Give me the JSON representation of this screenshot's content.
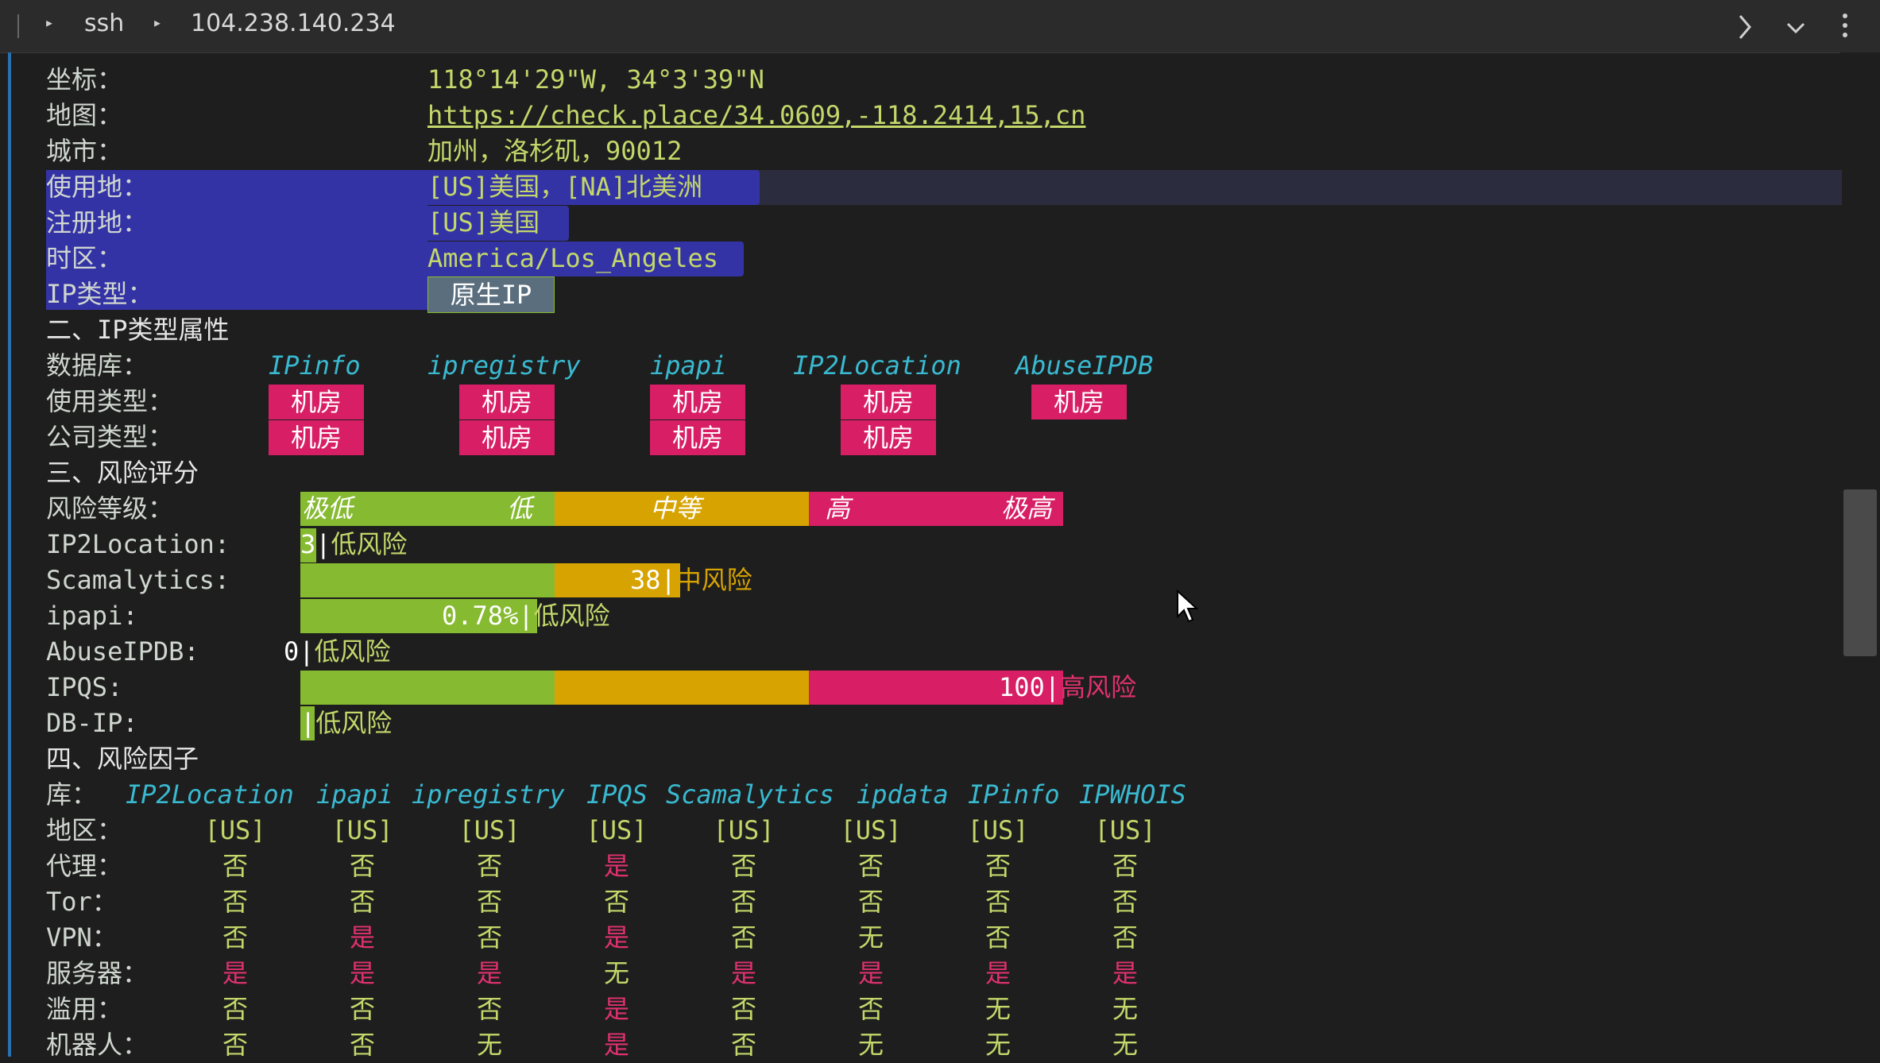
{
  "header": {
    "crumb_program": "ssh",
    "crumb_host": "104.238.140.234"
  },
  "colors": {
    "accent_green": "#86ba30",
    "accent_yellow": "#d6a300",
    "accent_red": "#d81e65",
    "selection": "#3433a6"
  },
  "geo": {
    "coords_label": "坐标：",
    "coords_value": "118°14'29\"W, 34°3'39\"N",
    "map_label": "地图：",
    "map_value": "https://check.place/34.0609,-118.2414,15,cn",
    "city_label": "城市：",
    "city_value": "加州，洛杉矶，90012",
    "usage_label": "使用地：",
    "usage_value": "[US]美国，[NA]北美洲",
    "reg_label": "注册地：",
    "reg_value": "[US]美国",
    "tz_label": "时区：",
    "tz_value": "America/Los_Angeles",
    "iptype_label": "IP类型：",
    "iptype_value": "原生IP"
  },
  "section2": {
    "title": "二、IP类型属性",
    "db_label": "数据库：",
    "use_label": "使用类型：",
    "company_label": "公司类型：",
    "databases": [
      "IPinfo",
      "ipregistry",
      "ipapi",
      "IP2Location",
      "AbuseIPDB"
    ],
    "use_types": [
      "机房",
      "机房",
      "机房",
      "机房",
      "机房"
    ],
    "company_types": [
      "机房",
      "机房",
      "机房",
      "机房"
    ]
  },
  "section3": {
    "title": "三、风险评分",
    "level_label": "风险等级：",
    "levels": [
      "极低",
      "低",
      "中等",
      "高",
      "极高"
    ],
    "scores": [
      {
        "name": "IP2Location:",
        "value": "3",
        "risk": "低风险",
        "fraction": 0.03
      },
      {
        "name": "Scamalytics:",
        "value": "38",
        "risk": "中风险",
        "fraction": 0.38
      },
      {
        "name": "ipapi:",
        "value": "0.78%",
        "risk": "低风险",
        "fraction": 0.3
      },
      {
        "name": "AbuseIPDB:",
        "value": "0",
        "risk": "低风险",
        "fraction": 0
      },
      {
        "name": "IPQS:",
        "value": "100",
        "risk": "高风险",
        "fraction": 1.0
      },
      {
        "name": "DB-IP:",
        "value": "",
        "risk": "低风险",
        "fraction": 0
      }
    ]
  },
  "section4": {
    "title": "四、风险因子",
    "lib_label": "库：",
    "libs": [
      "IP2Location",
      "ipapi",
      "ipregistry",
      "IPQS",
      "Scamalytics",
      "ipdata",
      "IPinfo",
      "IPWHOIS"
    ],
    "rows": [
      {
        "label": "地区：",
        "values": [
          "[US]",
          "[US]",
          "[US]",
          "[US]",
          "[US]",
          "[US]",
          "[US]",
          "[US]"
        ]
      },
      {
        "label": "代理：",
        "values": [
          "否",
          "否",
          "否",
          "是",
          "否",
          "否",
          "否",
          "否"
        ]
      },
      {
        "label": "Tor：",
        "values": [
          "否",
          "否",
          "否",
          "否",
          "否",
          "否",
          "否",
          "否"
        ]
      },
      {
        "label": "VPN：",
        "values": [
          "否",
          "是",
          "否",
          "是",
          "否",
          "无",
          "否",
          "否"
        ]
      },
      {
        "label": "服务器：",
        "values": [
          "是",
          "是",
          "是",
          "无",
          "是",
          "是",
          "是",
          "是"
        ]
      },
      {
        "label": "滥用：",
        "values": [
          "否",
          "否",
          "否",
          "是",
          "否",
          "否",
          "无",
          "无"
        ]
      },
      {
        "label": "机器人：",
        "values": [
          "否",
          "否",
          "无",
          "是",
          "否",
          "无",
          "无",
          "无"
        ]
      }
    ]
  }
}
